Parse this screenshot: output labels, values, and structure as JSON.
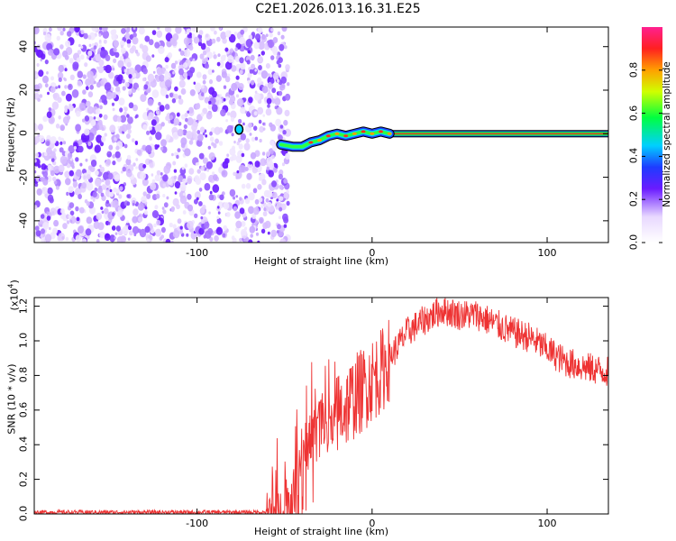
{
  "chart_data": [
    {
      "type": "heatmap",
      "title": "C2E1.2026.013.16.31.E25",
      "xlabel": "Height of straight line (km)",
      "ylabel": "Frequency (Hz)",
      "xlim": [
        -193,
        135
      ],
      "ylim": [
        -50,
        49
      ],
      "xticks": [
        -100,
        0,
        100
      ],
      "yticks": [
        -40,
        -20,
        0,
        20,
        40
      ],
      "noise_region_x": [
        -193,
        -52
      ],
      "signal_track": {
        "x": [
          -52,
          -45,
          -40,
          -35,
          -30,
          -25,
          -20,
          -15,
          -10,
          -5,
          0,
          5,
          10,
          135
        ],
        "y": [
          -5,
          -6,
          -6,
          -4,
          -3,
          -1,
          0,
          -1,
          0,
          1,
          0,
          1,
          0,
          0
        ]
      },
      "isolated_blob": {
        "x": -76,
        "y": 2
      },
      "colorbar": {
        "label": "Normalized spectral amplitude",
        "range": [
          0,
          1
        ],
        "ticks": [
          "0.0",
          "0.2",
          "0.4",
          "0.6",
          "0.8"
        ]
      }
    },
    {
      "type": "line",
      "xlabel": "Height of straight line (km)",
      "ylabel": "SNR (10 * v/v)",
      "y_scale_label": "(x10",
      "y_scale_exponent": "4",
      "xlim": [
        -193,
        135
      ],
      "ylim": [
        0,
        1.25
      ],
      "xticks": [
        -100,
        0,
        100
      ],
      "yticks": [
        "0.0",
        "0.2",
        "0.4",
        "0.6",
        "0.8",
        "1.0",
        "1.2"
      ],
      "series": [
        {
          "name": "SNR",
          "color": "#ee3333",
          "x": [
            -193,
            -60,
            -52,
            -45,
            -40,
            -35,
            -30,
            -25,
            -20,
            -15,
            -10,
            -5,
            0,
            5,
            10,
            20,
            30,
            40,
            50,
            60,
            70,
            80,
            90,
            100,
            110,
            120,
            135
          ],
          "y": [
            0.01,
            0.01,
            0.02,
            0.1,
            0.35,
            0.45,
            0.55,
            0.5,
            0.58,
            0.62,
            0.68,
            0.72,
            0.78,
            0.82,
            0.9,
            1.05,
            1.12,
            1.18,
            1.15,
            1.15,
            1.1,
            1.05,
            1.02,
            0.95,
            0.88,
            0.85,
            0.82
          ]
        }
      ]
    }
  ]
}
